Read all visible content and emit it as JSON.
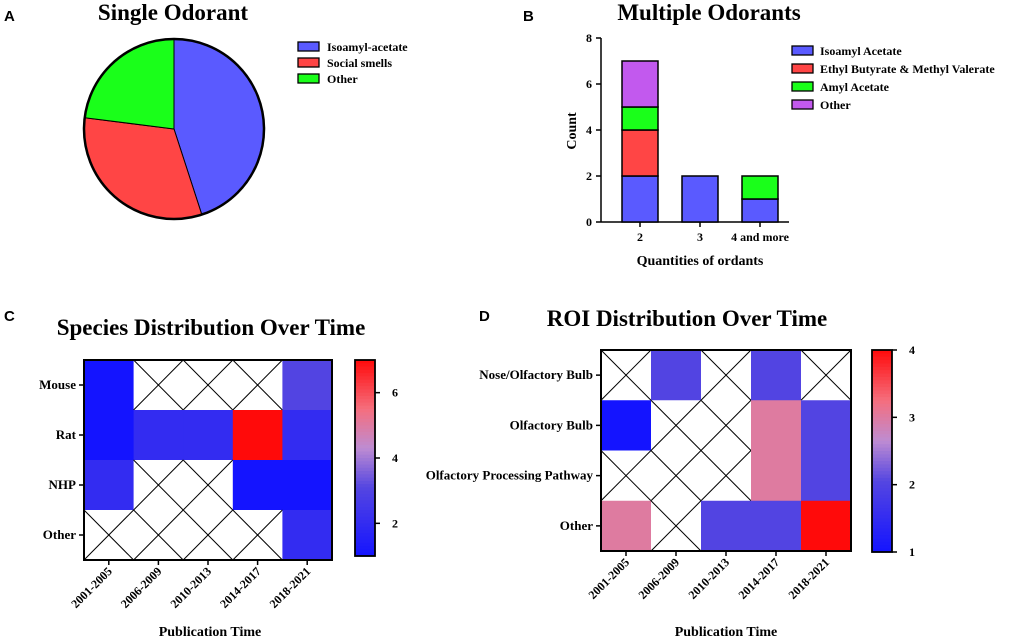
{
  "chart_data": [
    {
      "panel": "A",
      "type": "pie",
      "title": "Single Odorant",
      "categories": [
        "Isoamyl-acetate",
        "Social smells",
        "Other"
      ],
      "values": [
        45,
        32,
        23
      ],
      "colors": [
        "#5a5aff",
        "#ff4545",
        "#1aff1a"
      ],
      "legend": "right"
    },
    {
      "panel": "B",
      "type": "bar",
      "stacked": true,
      "title": "Multiple Odorants",
      "categories": [
        "2",
        "3",
        "4 and more"
      ],
      "series": [
        {
          "name": "Isoamyl Acetate",
          "color": "#5a5aff",
          "values": [
            2,
            2,
            1
          ]
        },
        {
          "name": "Ethyl Butyrate & Methyl Valerate",
          "color": "#ff4545",
          "values": [
            2,
            0,
            0
          ]
        },
        {
          "name": "Amyl Acetate",
          "color": "#1aff1a",
          "values": [
            1,
            0,
            1
          ]
        },
        {
          "name": "Other",
          "color": "#c259ee",
          "values": [
            2,
            0,
            0
          ]
        }
      ],
      "xlabel": "Quantities of ordants",
      "ylabel": "Count",
      "ylim": [
        0,
        8
      ],
      "yticks": [
        0,
        2,
        4,
        6,
        8
      ],
      "legend": "right"
    },
    {
      "panel": "C",
      "type": "heatmap",
      "title": "Species Distribution Over Time",
      "rows": [
        "Mouse",
        "Rat",
        "NHP",
        "Other"
      ],
      "columns": [
        "2001-2005",
        "2006-2009",
        "2010-2013",
        "2014-2017",
        "2018-2021"
      ],
      "values": [
        [
          1,
          null,
          null,
          null,
          3
        ],
        [
          1,
          2,
          2,
          7,
          2
        ],
        [
          2,
          null,
          null,
          1,
          1
        ],
        [
          null,
          null,
          null,
          null,
          2
        ]
      ],
      "xlabel": "Publication Time",
      "colorbar": {
        "min": 1,
        "max": 7,
        "ticks": [
          2,
          4,
          6
        ]
      }
    },
    {
      "panel": "D",
      "type": "heatmap",
      "title": "ROI Distribution Over Time",
      "rows": [
        "Nose/Olfactory Bulb",
        "Olfactory Bulb",
        "Olfactory Processing Pathway",
        "Other"
      ],
      "columns": [
        "2001-2005",
        "2006-2009",
        "2010-2013",
        "2014-2017",
        "2018-2021"
      ],
      "values": [
        [
          null,
          2,
          null,
          2,
          null
        ],
        [
          1,
          null,
          null,
          3,
          2
        ],
        [
          null,
          null,
          null,
          3,
          2
        ],
        [
          3,
          null,
          2,
          2,
          4
        ]
      ],
      "xlabel": "Publication Time",
      "colorbar": {
        "min": 1,
        "max": 4,
        "ticks": [
          1,
          2,
          3,
          4
        ]
      }
    }
  ]
}
